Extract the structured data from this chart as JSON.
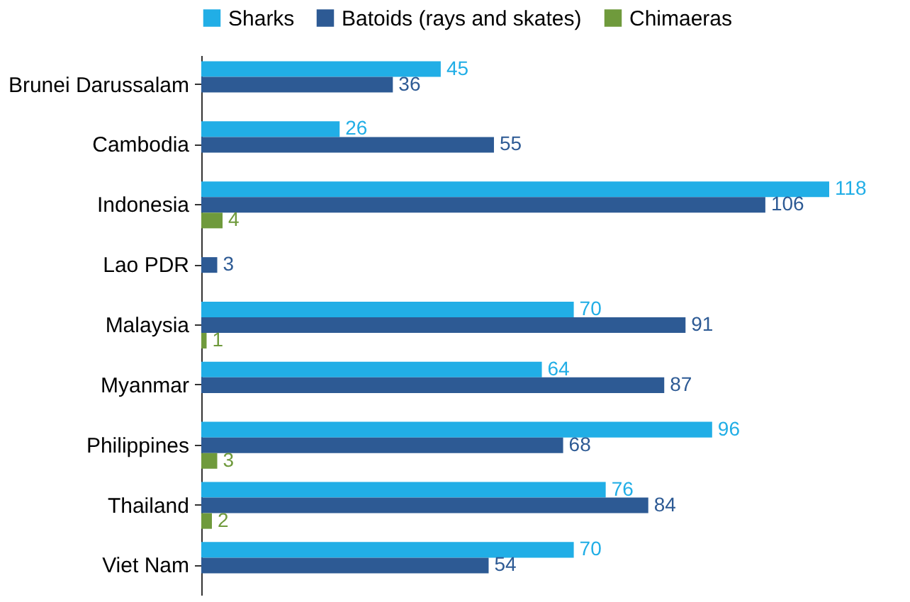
{
  "chart_data": {
    "type": "bar",
    "orientation": "horizontal",
    "categories": [
      "Brunei Darussalam",
      "Cambodia",
      "Indonesia",
      "Lao PDR",
      "Malaysia",
      "Myanmar",
      "Philippines",
      "Thailand",
      "Viet Nam"
    ],
    "series": [
      {
        "name": "Sharks",
        "color": "#21aee6",
        "values": [
          45,
          26,
          118,
          null,
          70,
          64,
          96,
          76,
          70
        ]
      },
      {
        "name": "Batoids (rays and skates)",
        "color": "#2d5a94",
        "values": [
          36,
          55,
          106,
          3,
          91,
          87,
          68,
          84,
          54
        ]
      },
      {
        "name": "Chimaeras",
        "color": "#6f9a3c",
        "values": [
          null,
          null,
          4,
          null,
          1,
          null,
          3,
          2,
          null
        ]
      }
    ],
    "data_labels": true,
    "tick_labels": "y",
    "legend": "top",
    "grid": false
  }
}
